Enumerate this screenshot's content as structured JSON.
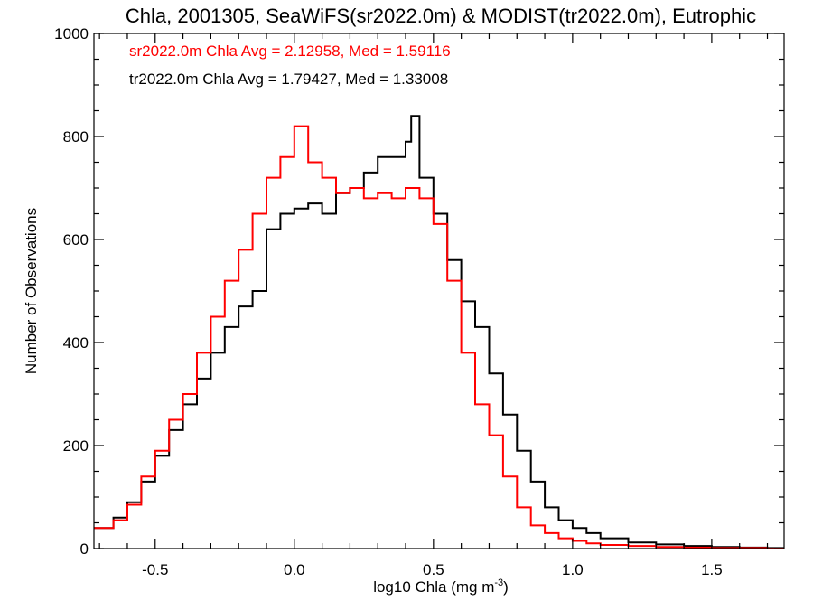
{
  "chart_data": {
    "type": "line",
    "step": true,
    "title": "Chla, 2001305, SeaWiFS(sr2022.0m) & MODIST(tr2022.0m), Eutrophic",
    "xlabel": "log10 Chla (mg m",
    "xlabel_sup": "-3",
    "xlabel_close": ")",
    "ylabel": "Number of Observations",
    "xlim": [
      -0.72,
      1.76
    ],
    "ylim": [
      0,
      1000
    ],
    "xticks": [
      -0.5,
      0.0,
      0.5,
      1.0,
      1.5
    ],
    "xtick_labels": [
      "-0.5",
      "0.0",
      "0.5",
      "1.0",
      "1.5"
    ],
    "yticks": [
      0,
      200,
      400,
      600,
      800,
      1000
    ],
    "ytick_labels": [
      "0",
      "200",
      "400",
      "600",
      "800",
      "1000"
    ],
    "grid": false,
    "annotations": [
      {
        "text": "sr2022.0m Chla Avg = 2.12958, Med = 1.59116",
        "color": "#000000"
      },
      {
        "text": "tr2022.0m Chla Avg = 1.79427, Med = 1.33008",
        "color": "#ff0000"
      }
    ],
    "series": [
      {
        "color": "#000000",
        "x": [
          -0.72,
          -0.65,
          -0.6,
          -0.55,
          -0.5,
          -0.45,
          -0.4,
          -0.35,
          -0.3,
          -0.25,
          -0.2,
          -0.15,
          -0.1,
          -0.05,
          0.0,
          0.05,
          0.1,
          0.15,
          0.2,
          0.25,
          0.3,
          0.35,
          0.4,
          0.42,
          0.45,
          0.5,
          0.55,
          0.6,
          0.65,
          0.7,
          0.75,
          0.8,
          0.85,
          0.9,
          0.95,
          1.0,
          1.05,
          1.1,
          1.2,
          1.3,
          1.4,
          1.5,
          1.6,
          1.7,
          1.76
        ],
        "y": [
          40,
          60,
          90,
          130,
          180,
          230,
          280,
          330,
          380,
          430,
          470,
          500,
          620,
          650,
          660,
          670,
          650,
          690,
          700,
          730,
          760,
          760,
          790,
          840,
          720,
          650,
          560,
          480,
          430,
          340,
          260,
          190,
          130,
          80,
          55,
          40,
          30,
          20,
          12,
          8,
          5,
          3,
          2,
          1,
          1
        ]
      },
      {
        "color": "#ff0000",
        "x": [
          -0.72,
          -0.65,
          -0.6,
          -0.55,
          -0.5,
          -0.45,
          -0.4,
          -0.35,
          -0.3,
          -0.25,
          -0.2,
          -0.15,
          -0.1,
          -0.05,
          0.0,
          0.05,
          0.1,
          0.15,
          0.2,
          0.25,
          0.3,
          0.35,
          0.4,
          0.45,
          0.5,
          0.55,
          0.6,
          0.65,
          0.7,
          0.75,
          0.8,
          0.85,
          0.9,
          0.95,
          1.0,
          1.05,
          1.1,
          1.2,
          1.3,
          1.4,
          1.5,
          1.6,
          1.7,
          1.76
        ],
        "y": [
          40,
          55,
          85,
          140,
          190,
          250,
          300,
          380,
          450,
          520,
          580,
          650,
          720,
          760,
          820,
          750,
          720,
          690,
          700,
          680,
          690,
          680,
          700,
          680,
          630,
          520,
          380,
          280,
          220,
          140,
          80,
          45,
          30,
          20,
          15,
          10,
          7,
          5,
          3,
          2,
          1,
          1,
          0,
          0
        ]
      }
    ]
  }
}
